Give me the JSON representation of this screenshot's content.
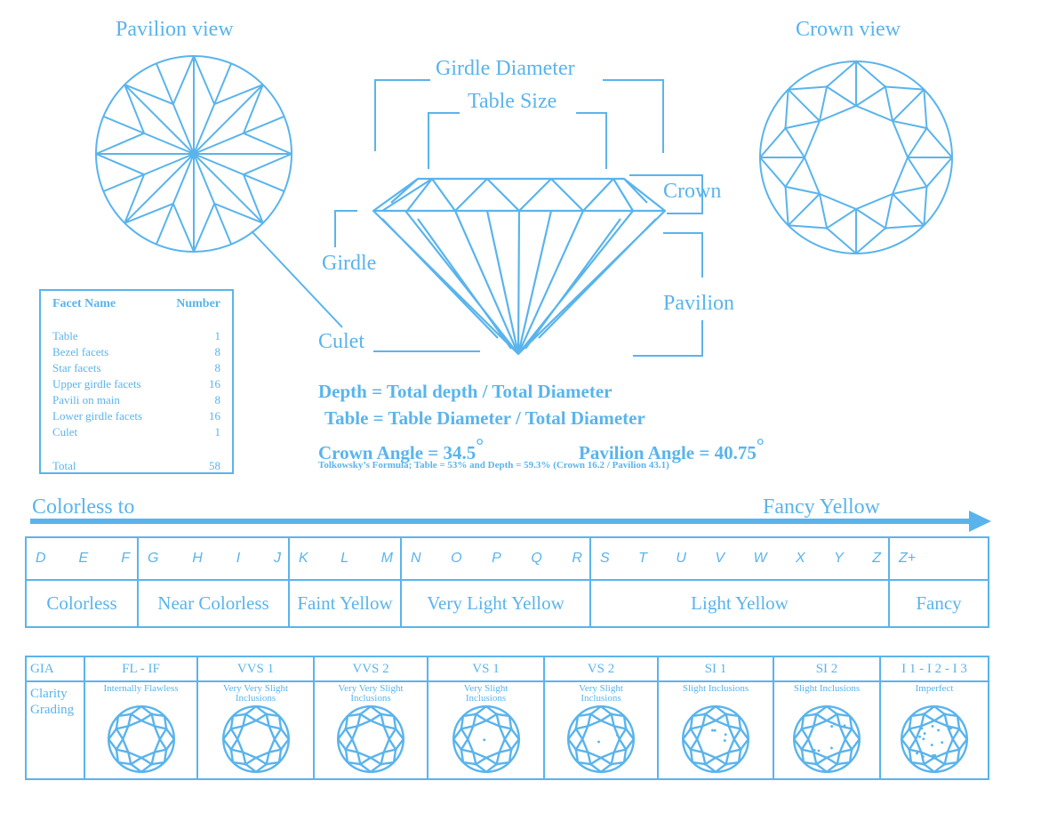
{
  "views": {
    "pavilion_title": "Pavilion view",
    "crown_title": "Crown view"
  },
  "profile_labels": {
    "girdle_diameter": "Girdle Diameter",
    "table_size": "Table Size",
    "crown": "Crown",
    "girdle": "Girdle",
    "pavilion": "Pavilion",
    "culet": "Culet"
  },
  "facet_table": {
    "header_name": "Facet Name",
    "header_number": "Number",
    "rows": [
      {
        "name": "Table",
        "number": "1"
      },
      {
        "name": "Bezel facets",
        "number": "8"
      },
      {
        "name": "Star facets",
        "number": "8"
      },
      {
        "name": "Upper girdle facets",
        "number": "16"
      },
      {
        "name": "Pavili on main",
        "number": "8"
      },
      {
        "name": "Lower girdle facets",
        "number": "16"
      },
      {
        "name": "Culet",
        "number": "1"
      }
    ],
    "total_label": "Total",
    "total_value": "58"
  },
  "formulas": {
    "depth": "Depth = Total depth / Total Diameter",
    "table": "Table = Table Diameter / Total Diameter",
    "crown_angle": "Crown Angle = 34.5",
    "pavilion_angle": "Pavilion Angle = 40.75",
    "degree": "°",
    "tolkowsky": "Tolkowsky’s Formula; Table = 53% and Depth = 59.3%  (Crown 16.2 / Pavilion 43.1)"
  },
  "color_scale": {
    "from_label": "Colorless to",
    "to_label": "Fancy Yellow",
    "groups": [
      {
        "letters": [
          "D",
          "E",
          "F"
        ],
        "name": "Colorless"
      },
      {
        "letters": [
          "G",
          "H",
          "I",
          "J"
        ],
        "name": "Near Colorless"
      },
      {
        "letters": [
          "K",
          "L",
          "M"
        ],
        "name": "Faint Yellow"
      },
      {
        "letters": [
          "N",
          "O",
          "P",
          "Q",
          "R"
        ],
        "name": "Very Light Yellow"
      },
      {
        "letters": [
          "S",
          "T",
          "U",
          "V",
          "W",
          "X",
          "Y",
          "Z"
        ],
        "name": "Light Yellow"
      },
      {
        "letters": [
          "Z+"
        ],
        "name": "Fancy"
      }
    ]
  },
  "clarity": {
    "gia_label": "GIA",
    "grading_line1": "Clarity",
    "grading_line2": "Grading",
    "grades": [
      {
        "code": "FL - IF",
        "line1": "Internally Flawless",
        "line2": ""
      },
      {
        "code": "VVS 1",
        "line1": "Very Very Slight",
        "line2": "Inclusions"
      },
      {
        "code": "VVS 2",
        "line1": "Very Very Slight",
        "line2": "Inclusions"
      },
      {
        "code": "VS 1",
        "line1": "Very Slight",
        "line2": "Inclusions"
      },
      {
        "code": "VS 2",
        "line1": "Very Slight",
        "line2": "Inclusions"
      },
      {
        "code": "SI 1",
        "line1": "Slight Inclusions",
        "line2": ""
      },
      {
        "code": "SI 2",
        "line1": "Slight Inclusions",
        "line2": ""
      },
      {
        "code": "I 1 - I 2 - I 3",
        "line1": "Imperfect",
        "line2": ""
      }
    ]
  },
  "colors": {
    "line": "#5ab4ec",
    "background": "#ffffff"
  }
}
